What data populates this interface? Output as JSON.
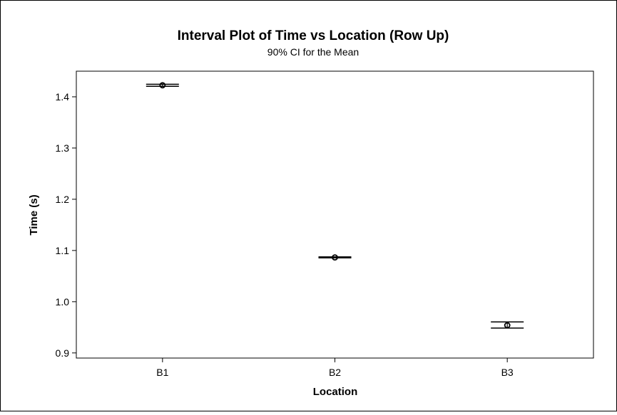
{
  "chart_data": {
    "type": "interval",
    "title": "Interval Plot of Time vs Location (Row Up)",
    "subtitle": "90% CI for the Mean",
    "xlabel": "Location",
    "ylabel": "Time (s)",
    "categories": [
      "B1",
      "B2",
      "B3"
    ],
    "ylim": [
      0.89,
      1.45
    ],
    "yticks": [
      0.9,
      1.0,
      1.1,
      1.2,
      1.3,
      1.4
    ],
    "ytick_labels": [
      "0.9",
      "1.0",
      "1.1",
      "1.2",
      "1.3",
      "1.4"
    ],
    "means": [
      1.4225,
      1.0865,
      0.954
    ],
    "ci_lower": [
      1.4205,
      1.0855,
      0.9485
    ],
    "ci_upper": [
      1.4245,
      1.0875,
      0.9605
    ],
    "grid": false,
    "legend": "none"
  }
}
